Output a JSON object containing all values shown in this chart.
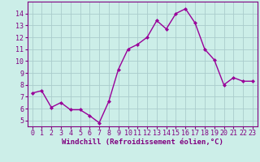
{
  "x": [
    0,
    1,
    2,
    3,
    4,
    5,
    6,
    7,
    8,
    9,
    10,
    11,
    12,
    13,
    14,
    15,
    16,
    17,
    18,
    19,
    20,
    21,
    22,
    23
  ],
  "y": [
    7.3,
    7.5,
    6.1,
    6.5,
    5.9,
    5.9,
    5.4,
    4.8,
    6.6,
    9.3,
    11.0,
    11.4,
    12.0,
    13.4,
    12.7,
    14.0,
    14.4,
    13.2,
    11.0,
    10.1,
    8.0,
    8.6,
    8.3,
    8.3
  ],
  "line_color": "#990099",
  "marker": "D",
  "markersize": 2.0,
  "linewidth": 1.0,
  "bg_color": "#cceee8",
  "grid_color": "#aacccc",
  "xlabel": "Windchill (Refroidissement éolien,°C)",
  "ylabel": "",
  "ylim": [
    4.5,
    15.0
  ],
  "xlim": [
    -0.5,
    23.5
  ],
  "yticks": [
    5,
    6,
    7,
    8,
    9,
    10,
    11,
    12,
    13,
    14
  ],
  "xticks": [
    0,
    1,
    2,
    3,
    4,
    5,
    6,
    7,
    8,
    9,
    10,
    11,
    12,
    13,
    14,
    15,
    16,
    17,
    18,
    19,
    20,
    21,
    22,
    23
  ],
  "label_color": "#800080",
  "xlabel_fontsize": 6.5,
  "tick_fontsize": 6.0,
  "axis_color": "#800080"
}
